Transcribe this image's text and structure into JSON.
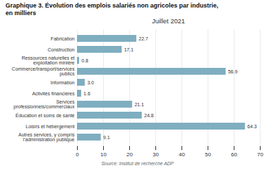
{
  "chart_data": {
    "type": "bar",
    "orientation": "horizontal",
    "title": "Graphique 3. Évolution des emplois salariés non agricoles par industrie,\nen milliers",
    "subtitle": "Juillet 2021",
    "source": "Source: Institut de recherche ADP",
    "categories": [
      "Fabrication",
      "Construction",
      "Ressources naturelles et\nexploitation minière",
      "Commerce/transport/services\npublics",
      "Information",
      "Activités financières",
      "Services\nprofessionnels/commerciaux",
      "Éducation et soins de santé",
      "Loisirs et hébergement",
      "Autres services, y compris\nl'administration publique"
    ],
    "values": [
      22.7,
      17.1,
      0.8,
      56.9,
      3.0,
      1.6,
      21.1,
      24.8,
      64.3,
      9.1
    ],
    "value_labels": [
      "22.7",
      "17.1",
      "0.8",
      "56.9",
      "3.0",
      "1.6",
      "21.1",
      "24.8",
      "64.3",
      "9.1"
    ],
    "data_labels": true,
    "color": "#7faec0",
    "xlim": [
      0,
      70
    ],
    "xticks": [
      0,
      10,
      20,
      30,
      40,
      50,
      60,
      70
    ],
    "grid": true
  }
}
